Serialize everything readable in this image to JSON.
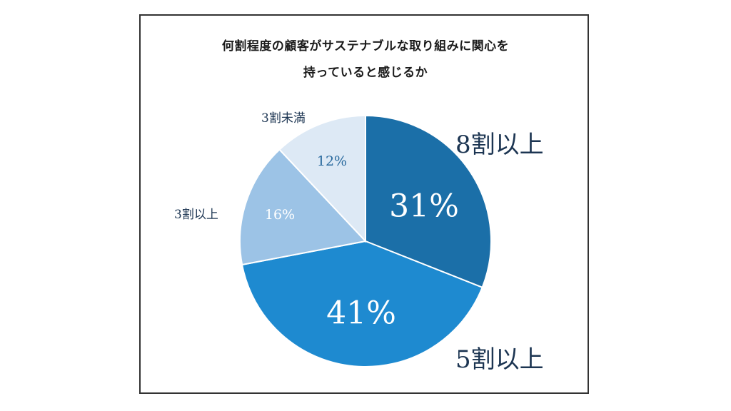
{
  "chart_data": {
    "type": "pie",
    "title": "何割程度の顧客がサステナブルな取り組みに関心を持っていると感じるか",
    "title_lines": [
      "何割程度の顧客がサステナブルな取り組みに関心を",
      "持っていると感じるか"
    ],
    "categories": [
      "8割以上",
      "5割以上",
      "3割以上",
      "3割未満"
    ],
    "values": [
      31,
      41,
      16,
      12
    ],
    "value_labels": [
      "31%",
      "41%",
      "16%",
      "12%"
    ],
    "colors": [
      "#1b6fa8",
      "#1e8ad0",
      "#9cc3e6",
      "#dde9f5"
    ],
    "start_angle_deg": 0,
    "direction": "clockwise",
    "legend": "none (labels outside slices)"
  },
  "slices": [
    {
      "label": "8割以上",
      "pct": "31%",
      "color": "#1b6fa8",
      "pct_color": "#ffffff"
    },
    {
      "label": "5割以上",
      "pct": "41%",
      "color": "#1e8ad0",
      "pct_color": "#ffffff"
    },
    {
      "label": "3割以上",
      "pct": "16%",
      "color": "#9cc3e6",
      "pct_color": "#ffffff"
    },
    {
      "label": "3割未満",
      "pct": "12%",
      "color": "#dde9f5",
      "pct_color": "#2a6a9e"
    }
  ]
}
